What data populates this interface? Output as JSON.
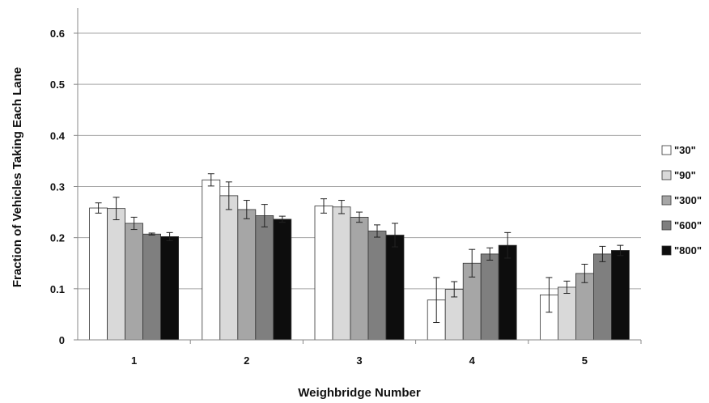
{
  "chart_data": {
    "type": "bar",
    "title": "",
    "xlabel": "Weighbridge Number",
    "ylabel": "Fraction of Vehicles Taking Each Lane",
    "ylim": [
      0,
      0.6
    ],
    "yticks": [
      "0",
      "0.1",
      "0.2",
      "0.3",
      "0.4",
      "0.5",
      "0.6"
    ],
    "categories": [
      "1",
      "2",
      "3",
      "4",
      "5"
    ],
    "grid": true,
    "legend_position": "right",
    "series": [
      {
        "name": "\"30\"",
        "color": "#ffffff",
        "values": [
          0.258,
          0.313,
          0.262,
          0.078,
          0.088
        ],
        "errors": [
          0.01,
          0.012,
          0.014,
          0.044,
          0.034
        ]
      },
      {
        "name": "\"90\"",
        "color": "#d9d9d9",
        "values": [
          0.257,
          0.282,
          0.26,
          0.099,
          0.103
        ],
        "errors": [
          0.022,
          0.027,
          0.013,
          0.015,
          0.012
        ]
      },
      {
        "name": "\"300\"",
        "color": "#a6a6a6",
        "values": [
          0.228,
          0.255,
          0.24,
          0.15,
          0.13
        ],
        "errors": [
          0.012,
          0.018,
          0.01,
          0.027,
          0.018
        ]
      },
      {
        "name": "\"600\"",
        "color": "#7f7f7f",
        "values": [
          0.207,
          0.243,
          0.213,
          0.168,
          0.168
        ],
        "errors": [
          0.002,
          0.022,
          0.012,
          0.012,
          0.015
        ]
      },
      {
        "name": "\"800\"",
        "color": "#0d0d0d",
        "values": [
          0.202,
          0.236,
          0.205,
          0.185,
          0.175
        ],
        "errors": [
          0.008,
          0.006,
          0.023,
          0.025,
          0.01
        ]
      }
    ]
  }
}
